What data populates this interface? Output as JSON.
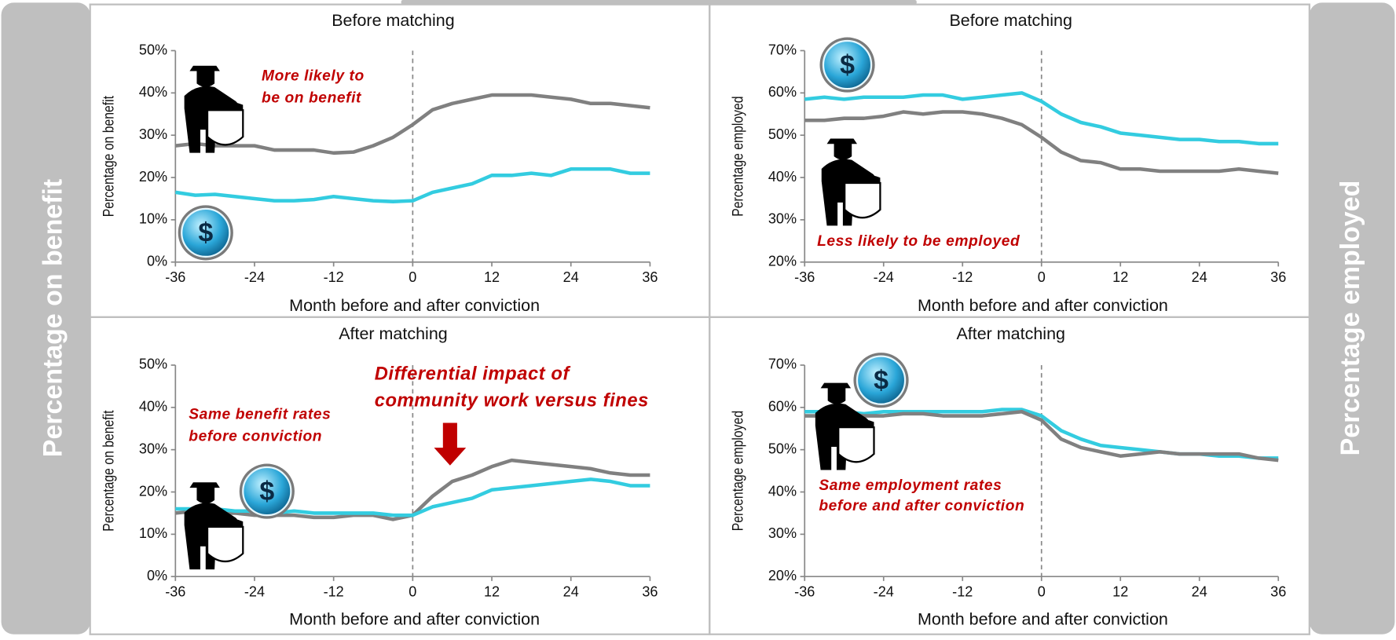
{
  "side_labels": [
    "Percentage on benefit",
    "Percentage employed"
  ],
  "icon_symbol": "$",
  "chart_data": [
    {
      "type": "line",
      "title": "Before matching",
      "xlabel": "Month before and after conviction",
      "ylabel": "Percentage on benefit",
      "annotations": [
        "More likely to",
        "be on benefit"
      ],
      "x": [
        -36,
        -33,
        -30,
        -27,
        -24,
        -21,
        -18,
        -15,
        -12,
        -9,
        -6,
        -3,
        0,
        3,
        6,
        9,
        12,
        15,
        18,
        21,
        24,
        27,
        30,
        33,
        36
      ],
      "xlim": [
        -36,
        36
      ],
      "xticks": [
        -36,
        -24,
        -12,
        0,
        12,
        24,
        36
      ],
      "vline": 0,
      "ylim": [
        0,
        50
      ],
      "yticks": [
        {
          "value": 0,
          "label": "0%"
        },
        {
          "value": 10,
          "label": "10%"
        },
        {
          "value": 20,
          "label": "20%"
        },
        {
          "value": 30,
          "label": "30%"
        },
        {
          "value": 40,
          "label": "40%"
        },
        {
          "value": 50,
          "label": "50%"
        }
      ],
      "series": [
        {
          "color": "#808080",
          "values": [
            27.5,
            28,
            27.5,
            27.5,
            27.5,
            26.5,
            26.5,
            26.5,
            25.8,
            26,
            27.5,
            29.5,
            32.5,
            36,
            37.5,
            38.5,
            39.5,
            39.5,
            39.5,
            39,
            38.5,
            37.5,
            37.5,
            37,
            36.5
          ]
        },
        {
          "color": "#33cce0",
          "values": [
            16.5,
            15.8,
            16,
            15.5,
            15,
            14.5,
            14.5,
            14.8,
            15.5,
            15,
            14.5,
            14.3,
            14.5,
            16.5,
            17.5,
            18.5,
            20.5,
            20.5,
            21,
            20.5,
            22,
            22,
            22,
            21,
            21
          ]
        }
      ]
    },
    {
      "type": "line",
      "title": "Before matching",
      "xlabel": "Month before and after conviction",
      "ylabel": "Percentage employed",
      "annotations": [
        "Less likely to be employed"
      ],
      "x": [
        -36,
        -33,
        -30,
        -27,
        -24,
        -21,
        -18,
        -15,
        -12,
        -9,
        -6,
        -3,
        0,
        3,
        6,
        9,
        12,
        15,
        18,
        21,
        24,
        27,
        30,
        33,
        36
      ],
      "xlim": [
        -36,
        36
      ],
      "xticks": [
        -36,
        -24,
        -12,
        0,
        12,
        24,
        36
      ],
      "vline": 0,
      "ylim": [
        20,
        70
      ],
      "yticks": [
        {
          "value": 20,
          "label": "20%"
        },
        {
          "value": 30,
          "label": "30%"
        },
        {
          "value": 40,
          "label": "40%"
        },
        {
          "value": 50,
          "label": "50%"
        },
        {
          "value": 60,
          "label": "60%"
        },
        {
          "value": 70,
          "label": "70%"
        }
      ],
      "series": [
        {
          "color": "#33cce0",
          "values": [
            58.5,
            59,
            58.5,
            59,
            59,
            59,
            59.5,
            59.5,
            58.5,
            59,
            59.5,
            60,
            58,
            55,
            53,
            52,
            50.5,
            50,
            49.5,
            49,
            49,
            48.5,
            48.5,
            48,
            48
          ]
        },
        {
          "color": "#808080",
          "values": [
            53.5,
            53.5,
            54,
            54,
            54.5,
            55.5,
            55,
            55.5,
            55.5,
            55,
            54,
            52.5,
            49.5,
            46,
            44,
            43.5,
            42,
            42,
            41.5,
            41.5,
            41.5,
            41.5,
            42,
            41.5,
            41
          ]
        }
      ]
    },
    {
      "type": "line",
      "title": "After matching",
      "xlabel": "Month before and after conviction",
      "ylabel": "Percentage on benefit",
      "annotations": [
        "Same benefit rates",
        "before conviction",
        "Differential impact of",
        "community work versus fines"
      ],
      "x": [
        -36,
        -33,
        -30,
        -27,
        -24,
        -21,
        -18,
        -15,
        -12,
        -9,
        -6,
        -3,
        0,
        3,
        6,
        9,
        12,
        15,
        18,
        21,
        24,
        27,
        30,
        33,
        36
      ],
      "xlim": [
        -36,
        36
      ],
      "xticks": [
        -36,
        -24,
        -12,
        0,
        12,
        24,
        36
      ],
      "vline": 0,
      "ylim": [
        0,
        50
      ],
      "yticks": [
        {
          "value": 0,
          "label": "0%"
        },
        {
          "value": 10,
          "label": "10%"
        },
        {
          "value": 20,
          "label": "20%"
        },
        {
          "value": 30,
          "label": "30%"
        },
        {
          "value": 40,
          "label": "40%"
        },
        {
          "value": 50,
          "label": "50%"
        }
      ],
      "series": [
        {
          "color": "#808080",
          "values": [
            15,
            15.5,
            15,
            15,
            14.5,
            14.5,
            14.5,
            14,
            14,
            14.5,
            14.5,
            13.5,
            14.5,
            19,
            22.5,
            24,
            26,
            27.5,
            27,
            26.5,
            26,
            25.5,
            24.5,
            24,
            24
          ]
        },
        {
          "color": "#33cce0",
          "values": [
            16,
            16,
            16,
            15.5,
            15.5,
            15,
            15.5,
            15,
            15,
            15,
            15,
            14.5,
            14.5,
            16.5,
            17.5,
            18.5,
            20.5,
            21,
            21.5,
            22,
            22.5,
            23,
            22.5,
            21.5,
            21.5
          ]
        }
      ]
    },
    {
      "type": "line",
      "title": "After matching",
      "xlabel": "Month before and after conviction",
      "ylabel": "Percentage employed",
      "annotations": [
        "Same employment rates",
        "before  and after conviction"
      ],
      "x": [
        -36,
        -33,
        -30,
        -27,
        -24,
        -21,
        -18,
        -15,
        -12,
        -9,
        -6,
        -3,
        0,
        3,
        6,
        9,
        12,
        15,
        18,
        21,
        24,
        27,
        30,
        33,
        36
      ],
      "xlim": [
        -36,
        36
      ],
      "xticks": [
        -36,
        -24,
        -12,
        0,
        12,
        24,
        36
      ],
      "vline": 0,
      "ylim": [
        20,
        70
      ],
      "yticks": [
        {
          "value": 20,
          "label": "20%"
        },
        {
          "value": 30,
          "label": "30%"
        },
        {
          "value": 40,
          "label": "40%"
        },
        {
          "value": 50,
          "label": "50%"
        },
        {
          "value": 60,
          "label": "60%"
        },
        {
          "value": 70,
          "label": "70%"
        }
      ],
      "series": [
        {
          "color": "#33cce0",
          "values": [
            59,
            59,
            59,
            58.5,
            59,
            59,
            59,
            59,
            59,
            59,
            59.5,
            59.5,
            58,
            54.5,
            52.5,
            51,
            50.5,
            50,
            49.5,
            49,
            49,
            48.5,
            48.5,
            48,
            48
          ]
        },
        {
          "color": "#808080",
          "values": [
            58,
            58,
            58.5,
            58,
            58,
            58.5,
            58.5,
            58,
            58,
            58,
            58.5,
            59,
            57,
            52.5,
            50.5,
            49.5,
            48.5,
            49,
            49.5,
            49,
            49,
            49,
            49,
            48,
            47.5
          ]
        }
      ]
    }
  ]
}
